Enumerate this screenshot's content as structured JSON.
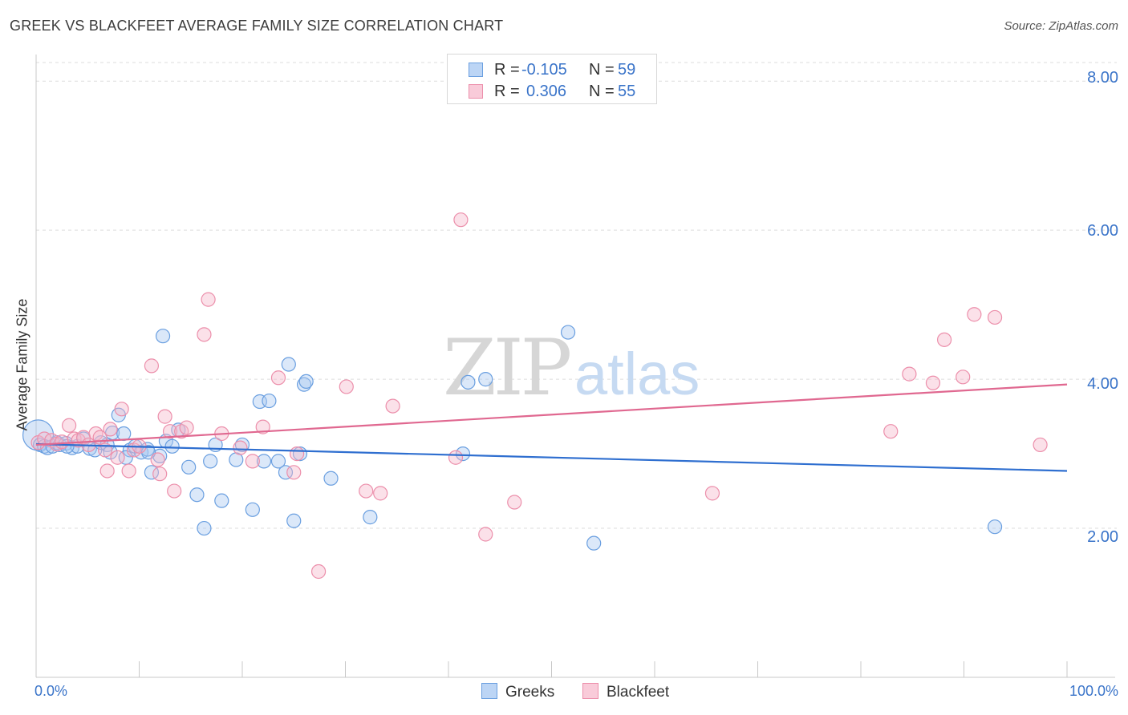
{
  "header": {
    "title": "GREEK VS BLACKFEET AVERAGE FAMILY SIZE CORRELATION CHART",
    "source": "Source: ZipAtlas.com"
  },
  "watermark": {
    "zip": "ZIP",
    "atlas": "atlas"
  },
  "legend_top": {
    "rows": [
      {
        "r_label": "R =",
        "r_value": "-0.105",
        "n_label": "N =",
        "n_value": "59"
      },
      {
        "r_label": "R =",
        "r_value": "0.306",
        "n_label": "N =",
        "n_value": "55"
      }
    ]
  },
  "colors": {
    "greeks_fill": "#a9c8f0",
    "greeks_stroke": "#6a9fe0",
    "greeks_line": "#2f6fd0",
    "blackfeet_fill": "#f6b8cb",
    "blackfeet_stroke": "#ec8fab",
    "blackfeet_line": "#e06890",
    "grid": "#dddddd",
    "axis_label": "#3a74c9"
  },
  "chart_data": {
    "type": "scatter",
    "title": "GREEK VS BLACKFEET AVERAGE FAMILY SIZE CORRELATION CHART",
    "xlabel": "",
    "ylabel": "Average Family Size",
    "xlim": [
      0,
      100
    ],
    "ylim": [
      0,
      8.25
    ],
    "x_tick_labels": [
      "0.0%",
      "100.0%"
    ],
    "y_ticks": [
      2,
      4,
      6,
      8
    ],
    "y_tick_labels": [
      "2.00",
      "4.00",
      "6.00",
      "8.00"
    ],
    "grid": "horizontal dashed",
    "legend_placement": "bottom-center",
    "series": [
      {
        "name": "Greeks",
        "r": -0.105,
        "n": 59,
        "trend": {
          "x": [
            0,
            100
          ],
          "y": [
            3.13,
            2.77
          ]
        },
        "points": [
          [
            0.2,
            3.25
          ],
          [
            0.4,
            3.12
          ],
          [
            0.8,
            3.1
          ],
          [
            1.1,
            3.08
          ],
          [
            1.6,
            3.1
          ],
          [
            2.0,
            3.15
          ],
          [
            2.3,
            3.12
          ],
          [
            2.9,
            3.14
          ],
          [
            3.5,
            3.08
          ],
          [
            4.0,
            3.1
          ],
          [
            4.6,
            3.2
          ],
          [
            5.2,
            3.07
          ],
          [
            5.7,
            3.05
          ],
          [
            6.3,
            3.15
          ],
          [
            6.9,
            3.12
          ],
          [
            7.4,
            3.28
          ],
          [
            8.0,
            3.52
          ],
          [
            8.5,
            3.27
          ],
          [
            9.1,
            3.05
          ],
          [
            9.6,
            3.1
          ],
          [
            10.2,
            3.02
          ],
          [
            10.8,
            3.06
          ],
          [
            11.2,
            2.75
          ],
          [
            12.0,
            2.97
          ],
          [
            12.6,
            3.17
          ],
          [
            13.2,
            3.1
          ],
          [
            13.8,
            3.32
          ],
          [
            15.6,
            2.45
          ],
          [
            16.3,
            2.0
          ],
          [
            17.4,
            3.12
          ],
          [
            18.0,
            2.37
          ],
          [
            19.4,
            2.92
          ],
          [
            20.0,
            3.12
          ],
          [
            21.0,
            2.25
          ],
          [
            21.7,
            3.7
          ],
          [
            22.1,
            2.9
          ],
          [
            22.6,
            3.71
          ],
          [
            23.5,
            2.9
          ],
          [
            24.2,
            2.75
          ],
          [
            24.5,
            4.2
          ],
          [
            25.0,
            2.1
          ],
          [
            25.6,
            3.0
          ],
          [
            26.0,
            3.93
          ],
          [
            26.2,
            3.97
          ],
          [
            28.6,
            2.67
          ],
          [
            32.4,
            2.15
          ],
          [
            41.4,
            3.0
          ],
          [
            41.9,
            3.96
          ],
          [
            43.6,
            4.0
          ],
          [
            51.6,
            4.63
          ],
          [
            54.1,
            1.8
          ],
          [
            93.0,
            2.02
          ],
          [
            12.3,
            4.58
          ],
          [
            7.2,
            3.02
          ],
          [
            10.9,
            3.02
          ],
          [
            14.8,
            2.82
          ],
          [
            16.9,
            2.9
          ],
          [
            8.7,
            2.95
          ],
          [
            3.0,
            3.1
          ]
        ]
      },
      {
        "name": "Blackfeet",
        "r": 0.306,
        "n": 55,
        "trend": {
          "x": [
            0,
            100
          ],
          "y": [
            3.12,
            3.93
          ]
        },
        "points": [
          [
            0.2,
            3.15
          ],
          [
            0.8,
            3.2
          ],
          [
            1.5,
            3.18
          ],
          [
            2.0,
            3.13
          ],
          [
            2.5,
            3.16
          ],
          [
            3.2,
            3.38
          ],
          [
            3.7,
            3.2
          ],
          [
            4.1,
            3.18
          ],
          [
            4.6,
            3.22
          ],
          [
            5.1,
            3.12
          ],
          [
            5.8,
            3.27
          ],
          [
            6.2,
            3.22
          ],
          [
            6.7,
            3.05
          ],
          [
            7.2,
            3.33
          ],
          [
            7.9,
            2.95
          ],
          [
            8.3,
            3.6
          ],
          [
            9.0,
            2.77
          ],
          [
            9.5,
            3.05
          ],
          [
            10.0,
            3.1
          ],
          [
            11.2,
            4.18
          ],
          [
            12.0,
            2.73
          ],
          [
            12.5,
            3.5
          ],
          [
            13.0,
            3.3
          ],
          [
            13.4,
            2.5
          ],
          [
            14.1,
            3.3
          ],
          [
            14.6,
            3.35
          ],
          [
            16.3,
            4.6
          ],
          [
            16.7,
            5.07
          ],
          [
            18.0,
            3.27
          ],
          [
            19.8,
            3.08
          ],
          [
            21.0,
            2.9
          ],
          [
            22.0,
            3.36
          ],
          [
            23.5,
            4.02
          ],
          [
            25.0,
            2.75
          ],
          [
            25.3,
            3.0
          ],
          [
            27.4,
            1.42
          ],
          [
            30.1,
            3.9
          ],
          [
            32.0,
            2.5
          ],
          [
            33.4,
            2.47
          ],
          [
            34.6,
            3.64
          ],
          [
            40.7,
            2.95
          ],
          [
            41.2,
            6.14
          ],
          [
            43.6,
            1.92
          ],
          [
            46.4,
            2.35
          ],
          [
            65.6,
            2.47
          ],
          [
            84.7,
            4.07
          ],
          [
            87.0,
            3.95
          ],
          [
            88.1,
            4.53
          ],
          [
            89.9,
            4.03
          ],
          [
            91.0,
            4.87
          ],
          [
            93.0,
            4.83
          ],
          [
            97.4,
            3.12
          ],
          [
            82.9,
            3.3
          ],
          [
            11.8,
            2.92
          ],
          [
            6.9,
            2.77
          ]
        ]
      }
    ]
  },
  "axis": {
    "ylabel": "Average Family Size"
  },
  "legend_bottom": {
    "greeks": "Greeks",
    "blackfeet": "Blackfeet"
  },
  "x_axis_labels": {
    "left": "0.0%",
    "right": "100.0%"
  }
}
